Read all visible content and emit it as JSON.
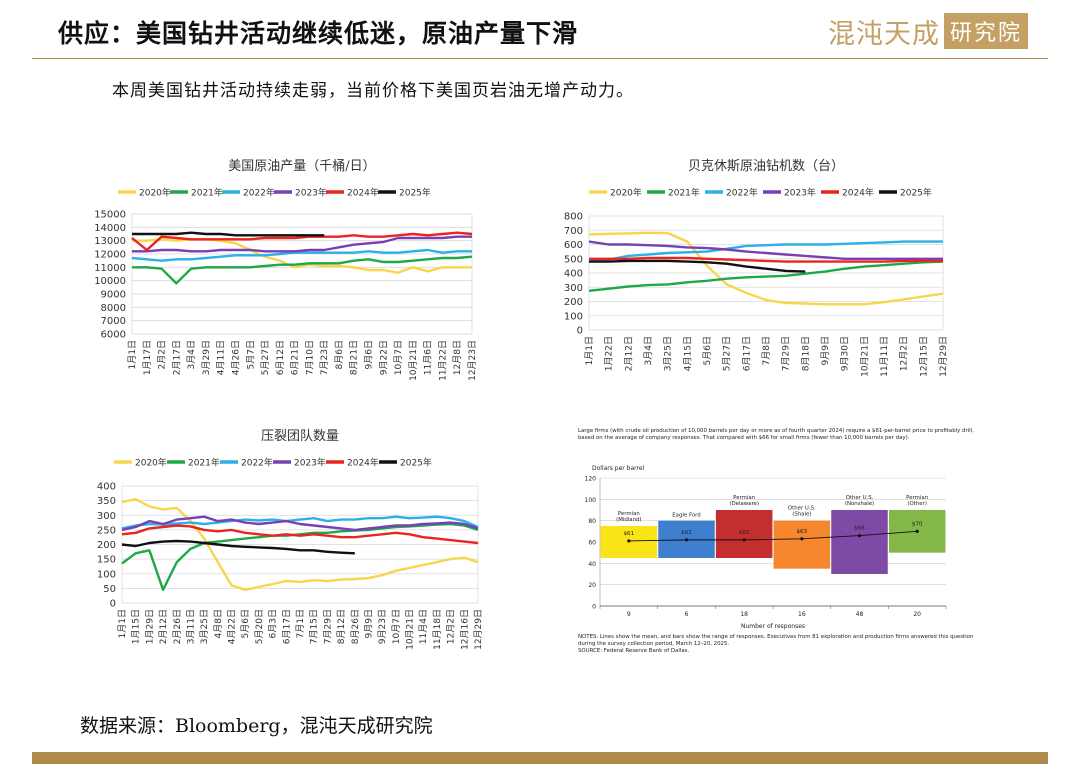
{
  "header": {
    "title": "供应：美国钻井活动继续低迷，原油产量下滑",
    "logo_text_a": "混沌天成",
    "logo_text_b": "研究院"
  },
  "subtitle": "本周美国钻井活动持续走弱，当前价格下美国页岩油无增产动力。",
  "source": "数据来源：Bloomberg，混沌天成研究院",
  "colors": {
    "2020": "#F7D64B",
    "2021": "#1EA84A",
    "2022": "#2BB1E6",
    "2023": "#7A3FB5",
    "2024": "#E8251F",
    "2025": "#111111",
    "gold": "#B08A4A"
  },
  "chart_data": [
    {
      "id": "production",
      "type": "line",
      "title": "美国原油产量（千桶/日）",
      "xlabels": [
        "1月1日",
        "1月17日",
        "2月2日",
        "2月17日",
        "3月4日",
        "3月29日",
        "4月11日",
        "4月26日",
        "5月7日",
        "5月27日",
        "6月12日",
        "6月21日",
        "7月10日",
        "7月23日",
        "8月6日",
        "8月21日",
        "9月6日",
        "9月22日",
        "10月7日",
        "10月21日",
        "11月6日",
        "11月22日",
        "12月8日",
        "12月23日"
      ],
      "ylim": [
        6000,
        15000
      ],
      "yticks": [
        6000,
        7000,
        8000,
        9000,
        10000,
        11000,
        12000,
        13000,
        14000,
        15000
      ],
      "series": [
        {
          "name": "2020年",
          "key": "2020",
          "values": [
            13000,
            13000,
            13100,
            13000,
            13100,
            13100,
            13000,
            12800,
            12300,
            11800,
            11500,
            11000,
            11200,
            11100,
            11100,
            11000,
            10800,
            10800,
            10600,
            11000,
            10700,
            11000,
            11000,
            11000
          ]
        },
        {
          "name": "2021年",
          "key": "2021",
          "values": [
            11000,
            11000,
            10900,
            9800,
            10900,
            11000,
            11000,
            11000,
            11000,
            11100,
            11200,
            11200,
            11300,
            11300,
            11300,
            11500,
            11600,
            11400,
            11400,
            11500,
            11600,
            11700,
            11700,
            11800
          ]
        },
        {
          "name": "2022年",
          "key": "2022",
          "values": [
            11700,
            11600,
            11500,
            11600,
            11600,
            11700,
            11800,
            11900,
            11900,
            11900,
            12000,
            12100,
            12100,
            12100,
            12100,
            12100,
            12200,
            12100,
            12100,
            12200,
            12300,
            12100,
            12200,
            12200
          ]
        },
        {
          "name": "2023年",
          "key": "2023",
          "values": [
            12200,
            12200,
            12300,
            12300,
            12200,
            12200,
            12300,
            12300,
            12300,
            12200,
            12200,
            12200,
            12300,
            12300,
            12500,
            12700,
            12800,
            12900,
            13200,
            13200,
            13200,
            13200,
            13300,
            13300
          ]
        },
        {
          "name": "2024年",
          "key": "2024",
          "values": [
            13200,
            12300,
            13300,
            13200,
            13100,
            13100,
            13100,
            13100,
            13100,
            13200,
            13200,
            13200,
            13300,
            13300,
            13300,
            13400,
            13300,
            13300,
            13400,
            13500,
            13400,
            13500,
            13600,
            13500
          ]
        },
        {
          "name": "2025年",
          "key": "2025",
          "values": [
            13500,
            13500,
            13500,
            13500,
            13600,
            13500,
            13500,
            13400,
            13400,
            13400,
            13400,
            13400,
            13400,
            13400
          ]
        }
      ]
    },
    {
      "id": "rigs",
      "type": "line",
      "title": "贝克休斯原油钻机数（台）",
      "xlabels": [
        "1月1日",
        "1月22日",
        "2月12日",
        "3月4日",
        "3月25日",
        "4月15日",
        "5月6日",
        "5月27日",
        "6月17日",
        "7月8日",
        "7月29日",
        "8月18日",
        "9月9日",
        "9月30日",
        "10月21日",
        "11月11日",
        "12月2日",
        "12月15日",
        "12月29日"
      ],
      "ylim": [
        0,
        800
      ],
      "yticks": [
        0,
        100,
        200,
        300,
        400,
        500,
        600,
        700,
        800
      ],
      "series": [
        {
          "name": "2020年",
          "key": "2020",
          "values": [
            670,
            675,
            678,
            682,
            680,
            620,
            450,
            320,
            260,
            210,
            190,
            185,
            180,
            180,
            180,
            195,
            215,
            235,
            255
          ]
        },
        {
          "name": "2021年",
          "key": "2021",
          "values": [
            275,
            290,
            305,
            315,
            320,
            335,
            345,
            360,
            370,
            375,
            380,
            395,
            410,
            430,
            445,
            455,
            465,
            475,
            480
          ]
        },
        {
          "name": "2022年",
          "key": "2022",
          "values": [
            480,
            495,
            520,
            530,
            540,
            545,
            550,
            570,
            590,
            595,
            600,
            600,
            600,
            605,
            610,
            615,
            620,
            620,
            620
          ]
        },
        {
          "name": "2023年",
          "key": "2023",
          "values": [
            620,
            600,
            600,
            595,
            590,
            580,
            575,
            565,
            550,
            540,
            530,
            520,
            510,
            500,
            500,
            500,
            500,
            500,
            500
          ]
        },
        {
          "name": "2024年",
          "key": "2024",
          "values": [
            500,
            500,
            500,
            505,
            505,
            505,
            500,
            495,
            490,
            485,
            480,
            480,
            480,
            480,
            480,
            480,
            485,
            485,
            485
          ]
        },
        {
          "name": "2025年",
          "key": "2025",
          "values": [
            480,
            480,
            485,
            485,
            485,
            480,
            475,
            465,
            445,
            430,
            415,
            410
          ]
        }
      ]
    },
    {
      "id": "frac",
      "type": "line",
      "title": "压裂团队数量",
      "xlabels": [
        "1月1日",
        "1月15日",
        "1月29日",
        "2月12日",
        "2月26日",
        "3月11日",
        "3月25日",
        "4月8日",
        "4月22日",
        "5月6日",
        "5月20日",
        "6月3日",
        "6月17日",
        "7月1日",
        "7月15日",
        "7月29日",
        "8月12日",
        "8月26日",
        "9月9日",
        "9月23日",
        "10月7日",
        "10月21日",
        "11月4日",
        "11月18日",
        "12月2日",
        "12月16日",
        "12月29日"
      ],
      "ylim": [
        0,
        400
      ],
      "yticks": [
        0,
        50,
        100,
        150,
        200,
        250,
        300,
        350,
        400
      ],
      "series": [
        {
          "name": "2020年",
          "key": "2020",
          "values": [
            345,
            355,
            330,
            320,
            325,
            280,
            220,
            140,
            60,
            45,
            55,
            65,
            75,
            72,
            78,
            75,
            80,
            82,
            85,
            95,
            110,
            120,
            130,
            140,
            150,
            155,
            140
          ]
        },
        {
          "name": "2021年",
          "key": "2021",
          "values": [
            135,
            170,
            180,
            45,
            140,
            185,
            205,
            210,
            215,
            220,
            225,
            230,
            230,
            235,
            240,
            240,
            245,
            248,
            250,
            255,
            260,
            262,
            265,
            268,
            270,
            265,
            250
          ]
        },
        {
          "name": "2022年",
          "key": "2022",
          "values": [
            255,
            265,
            270,
            268,
            272,
            275,
            270,
            275,
            280,
            285,
            282,
            285,
            280,
            285,
            290,
            280,
            285,
            285,
            290,
            290,
            295,
            290,
            292,
            295,
            290,
            280,
            260
          ]
        },
        {
          "name": "2023年",
          "key": "2023",
          "values": [
            250,
            260,
            280,
            270,
            285,
            290,
            295,
            280,
            285,
            275,
            270,
            275,
            280,
            270,
            265,
            260,
            255,
            250,
            255,
            260,
            265,
            265,
            270,
            272,
            275,
            270,
            255
          ]
        },
        {
          "name": "2024年",
          "key": "2024",
          "values": [
            235,
            240,
            255,
            260,
            265,
            262,
            250,
            245,
            250,
            240,
            235,
            230,
            235,
            230,
            235,
            230,
            225,
            225,
            230,
            235,
            240,
            235,
            225,
            220,
            215,
            210,
            205
          ]
        },
        {
          "name": "2025年",
          "key": "2025",
          "values": [
            200,
            195,
            205,
            210,
            212,
            210,
            205,
            200,
            195,
            192,
            190,
            188,
            185,
            180,
            180,
            175,
            172,
            170
          ]
        }
      ]
    },
    {
      "id": "dallas",
      "type": "bar",
      "title": "Large firms (with crude oil production of 10,000 barrels per day or more as of fourth quarter 2024) require a $61-per-barrel price to profitably drill, based on the average of company responses. That compared with $66 for small firms (fewer than 10,000 barrels per day).",
      "ylabel": "Dollars per barrel",
      "xlabel": "Number of responses",
      "ylim": [
        0,
        120
      ],
      "yticks": [
        0,
        20,
        40,
        60,
        80,
        100,
        120
      ],
      "categories": [
        "Permian (Midland)",
        "Eagle Ford",
        "Permian (Delaware)",
        "Other U.S. (Shale)",
        "Other U.S. (Nonshale)",
        "Permian (Other)"
      ],
      "responses": [
        "9",
        "6",
        "18",
        "16",
        "48",
        "20"
      ],
      "means": [
        61,
        62,
        62,
        63,
        66,
        70
      ],
      "mean_labels": [
        "$61",
        "$62",
        "$62",
        "$63",
        "$66",
        "$70"
      ],
      "ranges": [
        [
          45,
          75
        ],
        [
          45,
          80
        ],
        [
          45,
          90
        ],
        [
          35,
          80
        ],
        [
          30,
          90
        ],
        [
          50,
          90
        ]
      ],
      "bar_colors": [
        "#F9E418",
        "#3F7FD0",
        "#C42E2E",
        "#F5872E",
        "#7E4AA6",
        "#83B748"
      ],
      "note": "NOTES: Lines show the mean, and bars show the range of responses. Executives from 81 exploration and production firms answered this question during the survey collection period, March 12–20, 2025.",
      "source": "SOURCE: Federal Reserve Bank of Dallas."
    }
  ]
}
